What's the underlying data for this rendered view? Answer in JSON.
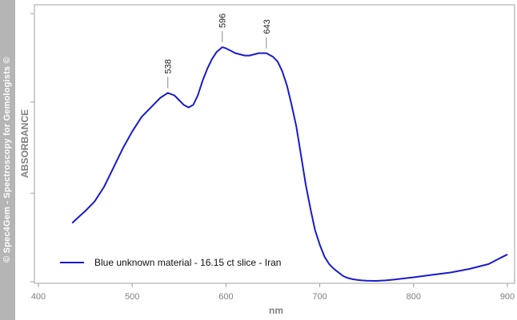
{
  "watermark": "© Spec4Gem - Spectroscopy for Gemologists ©",
  "chart_data": {
    "type": "line",
    "xlabel": "nm",
    "ylabel": "ABSORBANCE",
    "xlim": [
      400,
      900
    ],
    "ylim": [
      0,
      1
    ],
    "x_ticks": [
      "400",
      "500",
      "600",
      "700",
      "800",
      "900"
    ],
    "y_ticks_labeled": false,
    "grid": false,
    "legend_position": "bottom-left",
    "colors": {
      "series": "#1a1acc",
      "axis": "#808080",
      "watermark_bg": "#b5b5b5"
    },
    "annotations": [
      {
        "x": 538,
        "label": "538"
      },
      {
        "x": 596,
        "label": "596"
      },
      {
        "x": 643,
        "label": "643"
      }
    ],
    "series": [
      {
        "name": "Blue unknown material - 16.15 ct slice - Iran",
        "x": [
          436,
          440,
          450,
          460,
          470,
          480,
          490,
          500,
          510,
          520,
          530,
          538,
          545,
          550,
          555,
          560,
          565,
          570,
          575,
          580,
          585,
          590,
          596,
          600,
          605,
          610,
          615,
          620,
          625,
          630,
          635,
          643,
          650,
          655,
          660,
          665,
          670,
          675,
          680,
          685,
          690,
          695,
          700,
          705,
          710,
          715,
          720,
          725,
          730,
          735,
          740,
          745,
          750,
          760,
          770,
          780,
          800,
          820,
          840,
          860,
          870,
          880,
          890,
          895,
          900
        ],
        "y": [
          0.24,
          0.255,
          0.29,
          0.33,
          0.39,
          0.47,
          0.55,
          0.62,
          0.68,
          0.72,
          0.76,
          0.78,
          0.77,
          0.75,
          0.73,
          0.72,
          0.73,
          0.77,
          0.83,
          0.88,
          0.92,
          0.95,
          0.97,
          0.965,
          0.955,
          0.945,
          0.94,
          0.935,
          0.935,
          0.94,
          0.945,
          0.945,
          0.93,
          0.91,
          0.87,
          0.81,
          0.73,
          0.64,
          0.52,
          0.4,
          0.3,
          0.21,
          0.15,
          0.1,
          0.07,
          0.05,
          0.035,
          0.02,
          0.012,
          0.007,
          0.004,
          0.002,
          0.001,
          0.0,
          0.002,
          0.006,
          0.015,
          0.025,
          0.035,
          0.05,
          0.06,
          0.07,
          0.09,
          0.1,
          0.11
        ]
      }
    ]
  }
}
